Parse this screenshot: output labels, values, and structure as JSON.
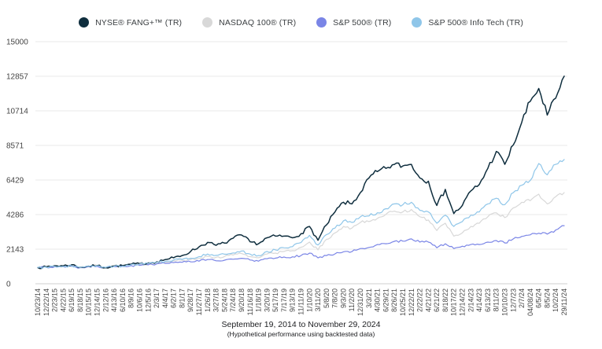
{
  "legend": {
    "items": [
      {
        "label": "NYSE® FANG+™ (TR)",
        "color": "#0f2e3e"
      },
      {
        "label": "NASDAQ 100® (TR)",
        "color": "#d8d8d8"
      },
      {
        "label": "S&P 500® (TR)",
        "color": "#7a85e6"
      },
      {
        "label": "S&P 500® Info Tech (TR)",
        "color": "#8fc6e9"
      }
    ]
  },
  "caption": {
    "line1": "September 19, 2014 to November 29, 2024",
    "line2": "(Hypothetical performance using backtested data)"
  },
  "chart_data": {
    "type": "line",
    "title": "",
    "xlabel": "",
    "ylabel": "",
    "ylim": [
      0,
      15000
    ],
    "y_ticks": [
      0,
      2143,
      4286,
      6429,
      8571,
      10714,
      12857,
      15000
    ],
    "grid": true,
    "legend_position": "top",
    "x_label_rotation": -90,
    "x_labels": [
      "10/23/14",
      "12/22/14",
      "2/23/15",
      "4/22/15",
      "6/19/15",
      "8/18/15",
      "10/15/15",
      "12/14/15",
      "2/12/16",
      "4/13/16",
      "6/10/16",
      "8/9/16",
      "10/6/16",
      "12/5/16",
      "2/3/17",
      "4/4/17",
      "6/2/17",
      "8/1/17",
      "9/28/17",
      "11/27/17",
      "1/26/18",
      "3/27/18",
      "5/24/18",
      "7/24/18",
      "9/20/18",
      "11/16/18",
      "1/18/19",
      "3/20/19",
      "5/17/19",
      "7/17/19",
      "9/13/19",
      "11/11/19",
      "1/10/20",
      "3/11/20",
      "5/8/20",
      "7/8/20",
      "9/3/20",
      "11/2/20",
      "12/31/20",
      "3/3/21",
      "4/30/21",
      "6/29/21",
      "8/26/21",
      "10/25/21",
      "12/22/21",
      "2/22/22",
      "4/21/22",
      "6/21/22",
      "8/18/22",
      "10/17/22",
      "12/14/22",
      "2/14/23",
      "4/14/23",
      "6/13/23",
      "8/11/23",
      "10/10/23",
      "12/7/23",
      "2/7/24",
      "04/08/24",
      "6/5/24",
      "8/5/24",
      "10/2/24",
      "29/11/24"
    ],
    "series": [
      {
        "name": "NYSE® FANG+™ (TR)",
        "color": "#0f2e3e",
        "width": 1.5,
        "volatility": 0.017,
        "values": [
          1000,
          1040,
          1120,
          1110,
          1180,
          1020,
          1090,
          1130,
          1000,
          1100,
          1120,
          1210,
          1240,
          1290,
          1360,
          1500,
          1610,
          1750,
          2000,
          2290,
          2560,
          2380,
          2520,
          2820,
          3020,
          2600,
          2480,
          2850,
          2950,
          2950,
          2850,
          3100,
          3550,
          2700,
          3650,
          4450,
          5050,
          4950,
          5650,
          6550,
          6950,
          7150,
          7400,
          7300,
          7400,
          6550,
          6350,
          4850,
          5850,
          4350,
          4850,
          5750,
          6150,
          7150,
          8200,
          7400,
          8600,
          10000,
          11300,
          12100,
          10450,
          11500,
          12860
        ]
      },
      {
        "name": "NASDAQ 100® (TR)",
        "color": "#d8d8d8",
        "width": 1.2,
        "volatility": 0.009,
        "values": [
          1000,
          1040,
          1090,
          1080,
          1110,
          1020,
          1090,
          1120,
          1000,
          1070,
          1080,
          1180,
          1200,
          1190,
          1280,
          1340,
          1430,
          1450,
          1490,
          1570,
          1700,
          1640,
          1690,
          1780,
          1870,
          1680,
          1610,
          1840,
          1900,
          2000,
          2050,
          2260,
          2580,
          2100,
          2750,
          3150,
          3550,
          3450,
          3800,
          3850,
          4050,
          4300,
          4500,
          4450,
          4600,
          4150,
          3950,
          3300,
          3750,
          2950,
          3150,
          3550,
          3750,
          4150,
          4400,
          4100,
          4700,
          5050,
          5150,
          5550,
          4950,
          5400,
          5650
        ]
      },
      {
        "name": "S&P 500® (TR)",
        "color": "#7a85e6",
        "width": 1.2,
        "volatility": 0.006,
        "values": [
          1000,
          1020,
          1060,
          1060,
          1080,
          1000,
          1060,
          1080,
          990,
          1060,
          1070,
          1130,
          1140,
          1170,
          1230,
          1260,
          1310,
          1330,
          1360,
          1400,
          1500,
          1420,
          1460,
          1520,
          1580,
          1470,
          1400,
          1550,
          1590,
          1660,
          1670,
          1750,
          1900,
          1600,
          1750,
          1850,
          1980,
          1990,
          2180,
          2250,
          2430,
          2480,
          2630,
          2640,
          2780,
          2580,
          2580,
          2230,
          2480,
          2180,
          2330,
          2430,
          2430,
          2580,
          2680,
          2530,
          2780,
          2930,
          3030,
          3130,
          3080,
          3330,
          3600
        ]
      },
      {
        "name": "S&P 500® Info Tech (TR)",
        "color": "#8fc6e9",
        "width": 1.2,
        "volatility": 0.011,
        "values": [
          1000,
          1030,
          1080,
          1070,
          1110,
          1010,
          1080,
          1120,
          1010,
          1080,
          1100,
          1190,
          1220,
          1250,
          1330,
          1390,
          1480,
          1510,
          1580,
          1680,
          1840,
          1760,
          1830,
          1910,
          2030,
          1840,
          1750,
          2000,
          2100,
          2230,
          2300,
          2550,
          3000,
          2400,
          3050,
          3450,
          3900,
          3800,
          4150,
          4200,
          4400,
          4650,
          4950,
          4900,
          5050,
          4550,
          4450,
          3750,
          4250,
          3550,
          3850,
          4250,
          4450,
          4950,
          5300,
          4900,
          5650,
          6100,
          6400,
          7450,
          6750,
          7400,
          7700
        ]
      }
    ],
    "axis_colors": {
      "grid": "#e9e9e9",
      "zero_line": "#cfcfcf",
      "tick_text": "#444444"
    }
  }
}
